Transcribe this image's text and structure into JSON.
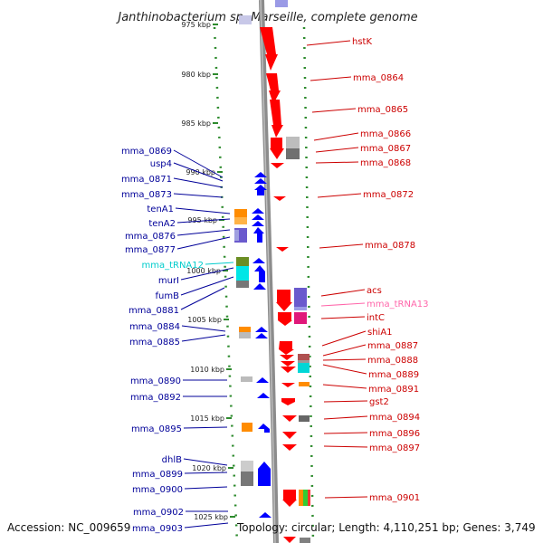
{
  "title": "Janthinobacterium sp. Marseille, complete genome",
  "footer": {
    "accession": "Accession: NC_009659",
    "summary": "Topology: circular; Length: 4,110,251 bp; Genes: 3,749"
  },
  "colors": {
    "forward_gene": "#ff0000",
    "reverse_gene": "#0000ff",
    "forward_label": "#cc0000",
    "reverse_label": "#000099",
    "trna_reverse": "#00cccc",
    "trna_forward": "#ff66aa"
  },
  "scale": {
    "labels": [
      "975 kbp",
      "980 kbp",
      "985 kbp",
      "990 kbp",
      "995 kbp",
      "1000 kbp",
      "1005 kbp",
      "1010 kbp",
      "1015 kbp",
      "1020 kbp",
      "1025 kbp"
    ]
  },
  "left_labels": [
    {
      "text": "mma_0869",
      "color": "reverse"
    },
    {
      "text": "usp4",
      "color": "reverse"
    },
    {
      "text": "mma_0871",
      "color": "reverse"
    },
    {
      "text": "mma_0873",
      "color": "reverse"
    },
    {
      "text": "tenA1",
      "color": "reverse"
    },
    {
      "text": "tenA2",
      "color": "reverse"
    },
    {
      "text": "mma_0876",
      "color": "reverse"
    },
    {
      "text": "mma_0877",
      "color": "reverse"
    },
    {
      "text": "mma_tRNA12",
      "color": "trna"
    },
    {
      "text": "murI",
      "color": "reverse"
    },
    {
      "text": "fumB",
      "color": "reverse"
    },
    {
      "text": "mma_0881",
      "color": "reverse"
    },
    {
      "text": "mma_0884",
      "color": "reverse"
    },
    {
      "text": "mma_0885",
      "color": "reverse"
    },
    {
      "text": "mma_0890",
      "color": "reverse"
    },
    {
      "text": "mma_0892",
      "color": "reverse"
    },
    {
      "text": "mma_0895",
      "color": "reverse"
    },
    {
      "text": "dhlB",
      "color": "reverse"
    },
    {
      "text": "mma_0899",
      "color": "reverse"
    },
    {
      "text": "mma_0900",
      "color": "reverse"
    },
    {
      "text": "mma_0902",
      "color": "reverse"
    },
    {
      "text": "mma_0903",
      "color": "reverse"
    }
  ],
  "right_labels": [
    {
      "text": "hstK",
      "color": "forward"
    },
    {
      "text": "mma_0864",
      "color": "forward"
    },
    {
      "text": "mma_0865",
      "color": "forward"
    },
    {
      "text": "mma_0866",
      "color": "forward"
    },
    {
      "text": "mma_0867",
      "color": "forward"
    },
    {
      "text": "mma_0868",
      "color": "forward"
    },
    {
      "text": "mma_0872",
      "color": "forward"
    },
    {
      "text": "mma_0878",
      "color": "forward"
    },
    {
      "text": "acs",
      "color": "forward"
    },
    {
      "text": "mma_tRNA13",
      "color": "trna"
    },
    {
      "text": "intC",
      "color": "forward"
    },
    {
      "text": "shiA1",
      "color": "forward"
    },
    {
      "text": "mma_0887",
      "color": "forward"
    },
    {
      "text": "mma_0888",
      "color": "forward"
    },
    {
      "text": "mma_0889",
      "color": "forward"
    },
    {
      "text": "mma_0891",
      "color": "forward"
    },
    {
      "text": "gst2",
      "color": "forward"
    },
    {
      "text": "mma_0894",
      "color": "forward"
    },
    {
      "text": "mma_0896",
      "color": "forward"
    },
    {
      "text": "mma_0897",
      "color": "forward"
    },
    {
      "text": "mma_0901",
      "color": "forward"
    }
  ]
}
